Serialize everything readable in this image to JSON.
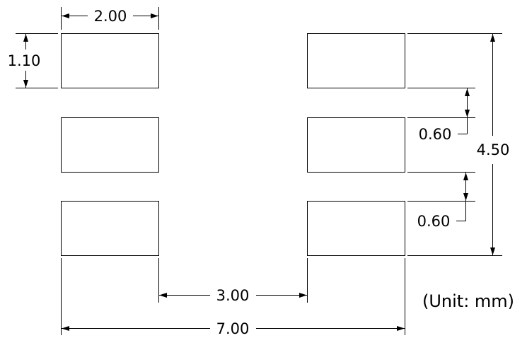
{
  "dimensions": {
    "pad_width": "2.00",
    "pad_height": "1.10",
    "total_height": "4.50",
    "gap_upper": "0.60",
    "gap_lower": "0.60",
    "inner_spacing": "3.00",
    "total_width": "7.00"
  },
  "unit_note": "(Unit: mm)"
}
